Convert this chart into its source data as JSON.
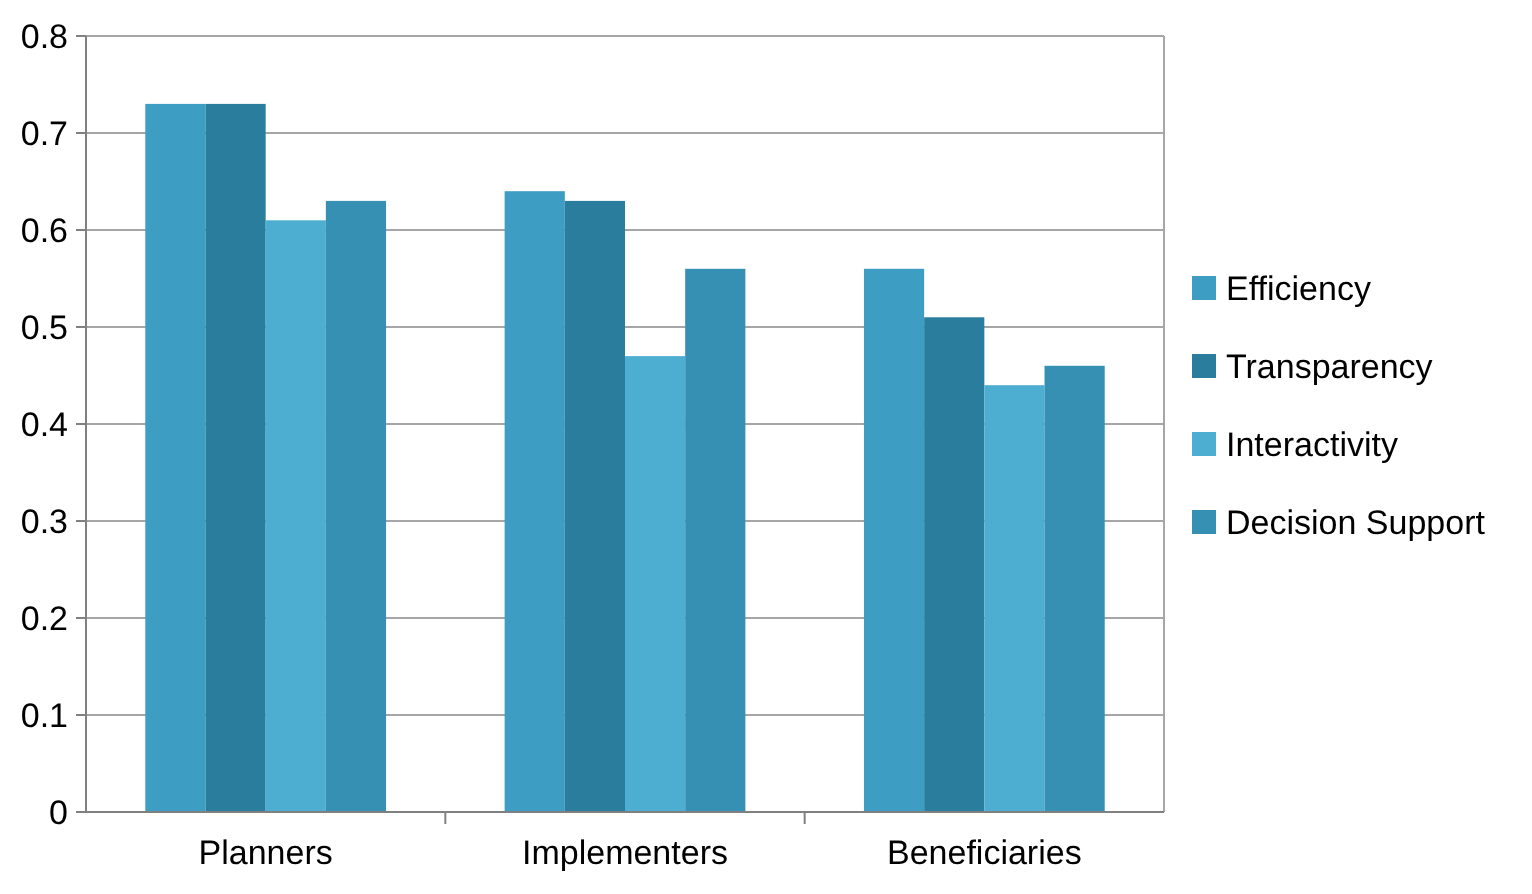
{
  "chart_data": {
    "type": "bar",
    "categories": [
      "Planners",
      "Implementers",
      "Beneficiaries"
    ],
    "series": [
      {
        "name": "Efficiency",
        "color": "#3d9dc2",
        "values": [
          0.73,
          0.64,
          0.56
        ]
      },
      {
        "name": "Transparency",
        "color": "#2a7d9c",
        "values": [
          0.73,
          0.63,
          0.51
        ]
      },
      {
        "name": "Interactivity",
        "color": "#4eaed2",
        "values": [
          0.61,
          0.47,
          0.44
        ]
      },
      {
        "name": "Decision Support",
        "color": "#3590b4",
        "values": [
          0.63,
          0.56,
          0.46
        ]
      }
    ],
    "ylim": [
      0,
      0.8
    ],
    "yticks": [
      0,
      0.1,
      0.2,
      0.3,
      0.4,
      0.5,
      0.6,
      0.7,
      0.8
    ],
    "grid": "y",
    "legend": "right"
  }
}
